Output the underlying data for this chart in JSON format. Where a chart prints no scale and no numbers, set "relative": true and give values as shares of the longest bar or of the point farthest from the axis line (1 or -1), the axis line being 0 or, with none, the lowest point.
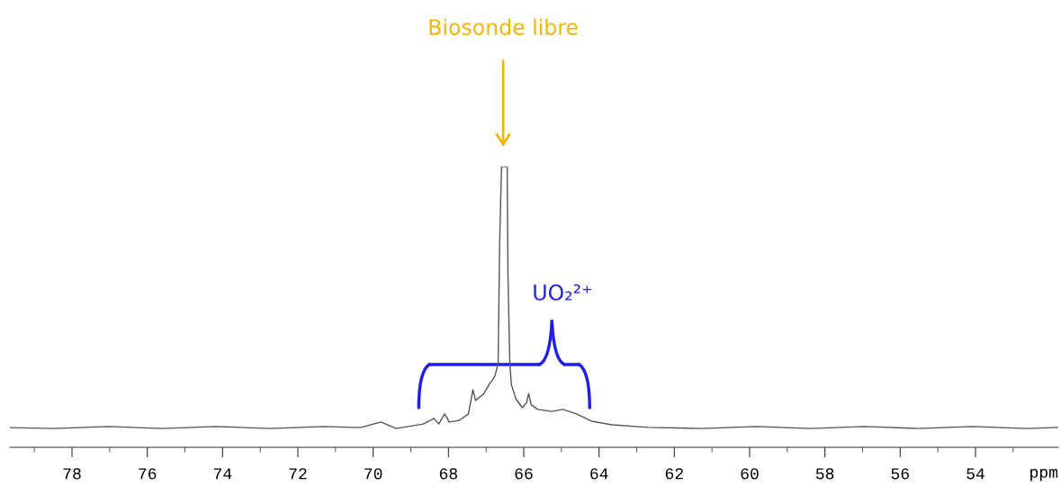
{
  "chart_data": {
    "type": "line",
    "relative": true,
    "xlabel": "ppm",
    "xlim": [
      79.65,
      51.8
    ],
    "xticks": [
      {
        "value": 79,
        "label": null
      },
      78,
      {
        "value": 77,
        "label": null
      },
      76,
      {
        "value": 75,
        "label": null
      },
      74,
      {
        "value": 73,
        "label": null
      },
      72,
      {
        "value": 71,
        "label": null
      },
      70,
      {
        "value": 69,
        "label": null
      },
      68,
      {
        "value": 67,
        "label": null
      },
      66,
      {
        "value": 65,
        "label": null
      },
      64,
      {
        "value": 63,
        "label": null
      },
      62,
      {
        "value": 61,
        "label": null
      },
      60,
      {
        "value": 59,
        "label": null
      },
      58,
      {
        "value": 57,
        "label": null
      },
      56,
      {
        "value": 55,
        "label": null
      },
      54,
      {
        "value": 53,
        "label": null
      }
    ],
    "grid": false,
    "legend": false,
    "marker": "none",
    "line_style": "solid",
    "series": [
      {
        "color": "#555555",
        "x": [
          79.65,
          78.48,
          77.04,
          75.61,
          74.17,
          72.74,
          71.3,
          70.34,
          69.79,
          69.39,
          68.67,
          68.38,
          68.26,
          68.1,
          67.98,
          67.71,
          67.47,
          67.35,
          67.28,
          67.07,
          66.92,
          66.83,
          66.76,
          66.68,
          66.64,
          66.59,
          66.52,
          66.44,
          66.42,
          66.37,
          66.33,
          66.21,
          66.04,
          65.92,
          65.87,
          65.8,
          65.63,
          65.25,
          64.96,
          64.6,
          64.2,
          63.65,
          62.69,
          61.25,
          59.82,
          58.38,
          56.95,
          55.51,
          54.08,
          52.64,
          51.8
        ],
        "values": [
          0.07,
          0.067,
          0.074,
          0.067,
          0.074,
          0.067,
          0.074,
          0.07,
          0.09,
          0.067,
          0.083,
          0.103,
          0.083,
          0.119,
          0.09,
          0.096,
          0.119,
          0.205,
          0.167,
          0.189,
          0.224,
          0.24,
          0.256,
          0.301,
          0.728,
          1,
          1,
          1,
          0.622,
          0.301,
          0.224,
          0.173,
          0.141,
          0.16,
          0.192,
          0.151,
          0.135,
          0.128,
          0.135,
          0.119,
          0.093,
          0.08,
          0.071,
          0.067,
          0.074,
          0.067,
          0.074,
          0.067,
          0.074,
          0.067,
          0.071
        ]
      }
    ],
    "annotations": [
      "Biosonde libre",
      "UO₂²⁺"
    ]
  }
}
